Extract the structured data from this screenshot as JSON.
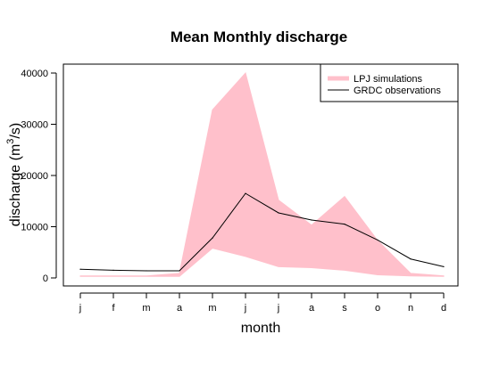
{
  "chart_data": {
    "type": "area",
    "title": "Mean Monthly discharge",
    "xlabel": "month",
    "ylabel_main": "discharge (m",
    "ylabel_sup": "3",
    "ylabel_tail": "/s)",
    "categories": [
      "j",
      "f",
      "m",
      "a",
      "m",
      "j",
      "j",
      "a",
      "s",
      "o",
      "n",
      "d"
    ],
    "ylim": [
      0,
      40000
    ],
    "yticks": [
      0,
      10000,
      20000,
      30000,
      40000
    ],
    "ytick_labels": [
      "0",
      "10000",
      "20000",
      "30000",
      "40000"
    ],
    "legend_position": "top-right",
    "series": [
      {
        "name": "LPJ simulations",
        "kind": "band",
        "color": "#ffc0cb",
        "upper": [
          400,
          400,
          400,
          900,
          32800,
          40000,
          15200,
          10300,
          15900,
          7300,
          900,
          400
        ],
        "lower": [
          300,
          300,
          300,
          300,
          5800,
          4200,
          2200,
          2000,
          1500,
          600,
          400,
          300
        ]
      },
      {
        "name": "GRDC observations",
        "kind": "line",
        "color": "#000000",
        "values": [
          1700,
          1500,
          1400,
          1400,
          7800,
          16500,
          12700,
          11300,
          10500,
          7400,
          3700,
          2200
        ]
      }
    ]
  }
}
